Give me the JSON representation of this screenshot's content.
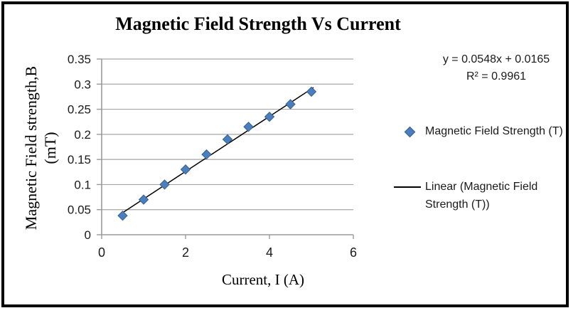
{
  "frame": {
    "border_color": "#000000",
    "background": "#ffffff"
  },
  "chart_data": {
    "type": "scatter",
    "title": "Magnetic Field Strength Vs Current",
    "xlabel": "Current, I (A)",
    "ylabel_line1": "Magnetic Field strength,B",
    "ylabel_line2": "(mT)",
    "x": [
      0.5,
      1,
      1.5,
      2,
      2.5,
      3,
      3.5,
      4,
      4.5,
      5
    ],
    "series": [
      {
        "name": "Magnetic Field Strength (T)",
        "marker": "diamond",
        "color": "#4A7EBE",
        "values": [
          0.038,
          0.07,
          0.1,
          0.13,
          0.16,
          0.19,
          0.215,
          0.235,
          0.26,
          0.285
        ]
      }
    ],
    "trendline": {
      "label": "Linear (Magnetic Field Strength (T))",
      "slope": 0.0548,
      "intercept": 0.0165,
      "x_start": 0.5,
      "x_end": 5.05,
      "color": "#000000"
    },
    "equation_line1": "y = 0.0548x + 0.0165",
    "equation_line2": "R² = 0.9961",
    "xlim": [
      0,
      6
    ],
    "ylim": [
      0,
      0.35
    ],
    "x_ticks": [
      0,
      2,
      4,
      6
    ],
    "x_tick_labels": [
      "0",
      "2",
      "4",
      "6"
    ],
    "y_ticks": [
      0,
      0.05,
      0.1,
      0.15,
      0.2,
      0.25,
      0.3,
      0.35
    ],
    "y_tick_labels": [
      "0",
      "0.05",
      "0.1",
      "0.15",
      "0.2",
      "0.25",
      "0.3",
      "0.35"
    ],
    "grid": true,
    "legend_position": "right",
    "colors": {
      "marker": "#4A7EBE",
      "marker_border": "#38618C",
      "trendline": "#000000",
      "gridline": "#A6A6A6",
      "axis": "#9A9A9A",
      "tick_label_text": "#1A1A1A"
    }
  }
}
